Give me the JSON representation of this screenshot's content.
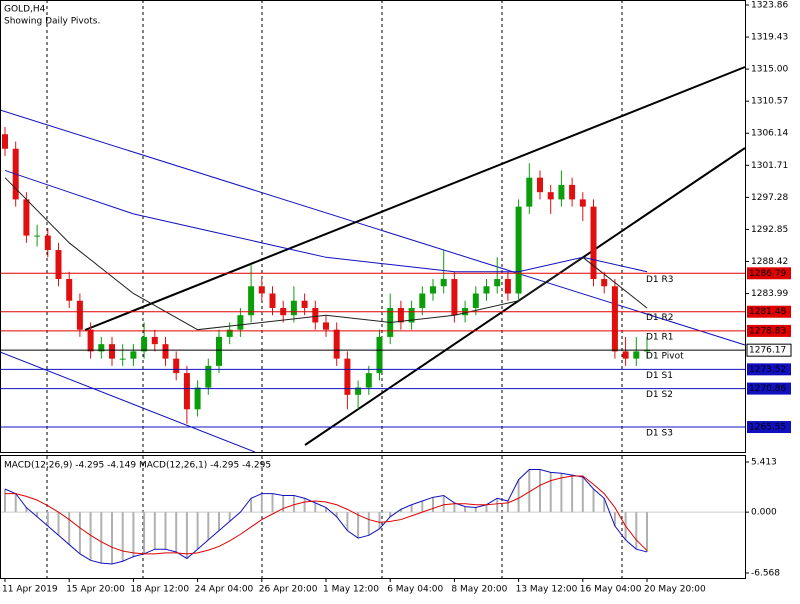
{
  "chart_data": [
    {
      "type": "candlestick",
      "title": "GOLD,H4",
      "subtitle": "Showing Daily Pivots.",
      "up_color": "#0a9e0a",
      "down_color": "#e01010",
      "ylim": [
        1262.1,
        1324.55
      ],
      "yticks": [
        1323.86,
        1319.43,
        {
          "value": 1315,
          "label": "1315.00"
        },
        1310.57,
        1306.14,
        1301.71,
        1297.28,
        1292.85,
        1288.42,
        1283.99
      ],
      "candles": [
        [
          1306,
          1307,
          1303,
          1304
        ],
        [
          1304,
          1305,
          1296,
          1297
        ],
        [
          1297,
          1298,
          1291,
          1292
        ],
        [
          1292,
          1293.5,
          1290.5,
          1292
        ],
        [
          1292,
          1293,
          1289,
          1290
        ],
        [
          1290,
          1291,
          1285,
          1286
        ],
        [
          1286,
          1287,
          1282,
          1283
        ],
        [
          1283,
          1284,
          1278,
          1279
        ],
        [
          1279,
          1280,
          1275,
          1276
        ],
        [
          1276,
          1278,
          1275,
          1277
        ],
        [
          1277,
          1278,
          1274,
          1275
        ],
        [
          1275,
          1277,
          1274,
          1275
        ],
        [
          1275,
          1277,
          1274,
          1276
        ],
        [
          1276,
          1280,
          1275,
          1278
        ],
        [
          1278,
          1279,
          1276,
          1277
        ],
        [
          1277,
          1278,
          1274,
          1275
        ],
        [
          1275,
          1276,
          1272,
          1273
        ],
        [
          1273,
          1274,
          1266,
          1268
        ],
        [
          1268,
          1272,
          1267,
          1271
        ],
        [
          1271,
          1275,
          1270,
          1274
        ],
        [
          1274,
          1279,
          1273,
          1278
        ],
        [
          1278,
          1280,
          1277,
          1279
        ],
        [
          1279,
          1282,
          1278,
          1281
        ],
        [
          1281,
          1288,
          1280,
          1285
        ],
        [
          1285,
          1286,
          1283,
          1284
        ],
        [
          1284,
          1285,
          1281,
          1282
        ],
        [
          1282,
          1283,
          1280,
          1281
        ],
        [
          1281,
          1285,
          1280,
          1283
        ],
        [
          1283,
          1284,
          1281,
          1282
        ],
        [
          1282,
          1283,
          1279,
          1280
        ],
        [
          1280,
          1281,
          1278,
          1279
        ],
        [
          1279,
          1280,
          1274,
          1275
        ],
        [
          1275,
          1276,
          1268,
          1270
        ],
        [
          1270,
          1272,
          1268,
          1271
        ],
        [
          1271,
          1274,
          1270,
          1273
        ],
        [
          1273,
          1279,
          1272,
          1278
        ],
        [
          1278,
          1284,
          1277,
          1282
        ],
        [
          1282,
          1283,
          1279,
          1280
        ],
        [
          1280,
          1283,
          1279,
          1282
        ],
        [
          1282,
          1285,
          1281,
          1284
        ],
        [
          1284,
          1286,
          1283,
          1285
        ],
        [
          1285,
          1290,
          1284,
          1286
        ],
        [
          1286,
          1287,
          1280,
          1281
        ],
        [
          1281,
          1283,
          1280,
          1282
        ],
        [
          1282,
          1285,
          1281,
          1284
        ],
        [
          1284,
          1286,
          1283,
          1285
        ],
        [
          1285,
          1289,
          1284,
          1286
        ],
        [
          1286,
          1287,
          1283,
          1284
        ],
        [
          1284,
          1297,
          1283,
          1296
        ],
        [
          1296,
          1302,
          1295,
          1300
        ],
        [
          1300,
          1301,
          1297,
          1298
        ],
        [
          1298,
          1299,
          1295,
          1297
        ],
        [
          1297,
          1301,
          1296,
          1299
        ],
        [
          1299,
          1300,
          1296,
          1297
        ],
        [
          1297,
          1298,
          1294,
          1296
        ],
        [
          1296,
          1297,
          1285,
          1286
        ],
        [
          1286,
          1287,
          1284,
          1285
        ],
        [
          1285,
          1286,
          1275,
          1276
        ],
        [
          1276,
          1278,
          1274,
          1275
        ],
        [
          1275,
          1278,
          1274,
          1276
        ],
        [
          1276,
          1278,
          1275,
          1276.17
        ]
      ],
      "overlays": [
        {
          "color": "#1010c0",
          "x": [
            0,
            6,
            12,
            18,
            24,
            30,
            36,
            42,
            48,
            54,
            60
          ],
          "values": [
            1301,
            1298,
            1295,
            1293,
            1291,
            1289,
            1288,
            1287,
            1287,
            1289,
            1287
          ]
        },
        {
          "color": "#202020",
          "x": [
            0,
            6,
            12,
            18,
            24,
            30,
            36,
            42,
            48,
            54,
            60
          ],
          "values": [
            1300,
            1291,
            1284,
            1279,
            1280,
            1281,
            1280,
            1281,
            1283,
            1289,
            1282
          ]
        }
      ],
      "pivots": [
        {
          "label": "D1 R3",
          "value": 1286.79,
          "color": "#e00000"
        },
        {
          "label": "D1 R2",
          "value": 1281.48,
          "color": "#e00000"
        },
        {
          "label": "D1 R1",
          "value": 1278.83,
          "color": "#e00000"
        },
        {
          "label": "D1 Pivot",
          "value": 1276.17,
          "color": "#000000"
        },
        {
          "label": "D1 S1",
          "value": 1273.52,
          "color": "#1010c0"
        },
        {
          "label": "D1 S2",
          "value": 1270.86,
          "color": "#1010c0"
        },
        {
          "label": "D1 S3",
          "value": 1265.55,
          "color": "#1010c0"
        }
      ]
    },
    {
      "type": "macd",
      "title": "MACD(12,26,9) -4.295 -4.149 MACD(12,26,1) -4.295 -4.295",
      "ylim": [
        -7.11,
        6.17
      ],
      "yticks": [
        5.413,
        {
          "value": 0,
          "label": "0.000"
        },
        -6.568
      ],
      "categories": [
        "11 Apr 2019",
        null,
        null,
        null,
        null,
        null,
        "15 Apr 20:00",
        null,
        null,
        null,
        null,
        null,
        "18 Apr 12:00",
        null,
        null,
        null,
        null,
        null,
        "24 Apr 04:00",
        null,
        null,
        null,
        null,
        null,
        "26 Apr 20:00",
        null,
        null,
        null,
        null,
        null,
        "1 May 12:00",
        null,
        null,
        null,
        null,
        null,
        "6 May 04:00",
        null,
        null,
        null,
        null,
        null,
        "8 May 20:00",
        null,
        null,
        null,
        null,
        null,
        "13 May 12:00",
        null,
        null,
        null,
        null,
        null,
        "16 May 04:00",
        null,
        null,
        null,
        null,
        null,
        "20 May 20:00"
      ],
      "series": [
        {
          "color": "#b0b0b0",
          "values": [
            2.5,
            2.0,
            0.5,
            -0.5,
            -1.5,
            -2.5,
            -3.5,
            -4.5,
            -5.2,
            -5.5,
            -5.6,
            -5.3,
            -4.8,
            -4.5,
            -4.0,
            -4.0,
            -4.3,
            -5.0,
            -4.0,
            -3.0,
            -2.0,
            -1.0,
            0.0,
            1.5,
            2.0,
            2.0,
            1.8,
            1.8,
            1.5,
            1.0,
            0.5,
            -0.5,
            -2.0,
            -2.8,
            -2.5,
            -1.8,
            -0.5,
            0.3,
            0.8,
            1.2,
            1.6,
            1.8,
            1.0,
            0.6,
            0.5,
            0.8,
            1.5,
            1.2,
            3.5,
            4.6,
            4.6,
            4.3,
            4.2,
            4.0,
            3.8,
            2.5,
            1.5,
            -1.5,
            -3.0,
            -4.0,
            -4.295
          ]
        },
        {
          "color": "#e00000",
          "values": [
            2.0,
            2.0,
            1.7,
            1.3,
            0.7,
            0.0,
            -0.8,
            -1.7,
            -2.5,
            -3.2,
            -3.8,
            -4.2,
            -4.4,
            -4.5,
            -4.5,
            -4.4,
            -4.4,
            -4.5,
            -4.4,
            -4.1,
            -3.7,
            -3.1,
            -2.4,
            -1.6,
            -0.8,
            -0.2,
            0.4,
            0.8,
            1.1,
            1.2,
            1.1,
            0.8,
            0.3,
            -0.3,
            -0.8,
            -1.1,
            -1.0,
            -0.8,
            -0.4,
            0.0,
            0.4,
            0.8,
            0.9,
            0.9,
            0.8,
            0.8,
            0.9,
            1.0,
            1.5,
            2.2,
            2.9,
            3.4,
            3.7,
            3.9,
            3.9,
            3.0,
            2.0,
            0.5,
            -1.5,
            -3.0,
            -4.149
          ]
        }
      ]
    }
  ]
}
